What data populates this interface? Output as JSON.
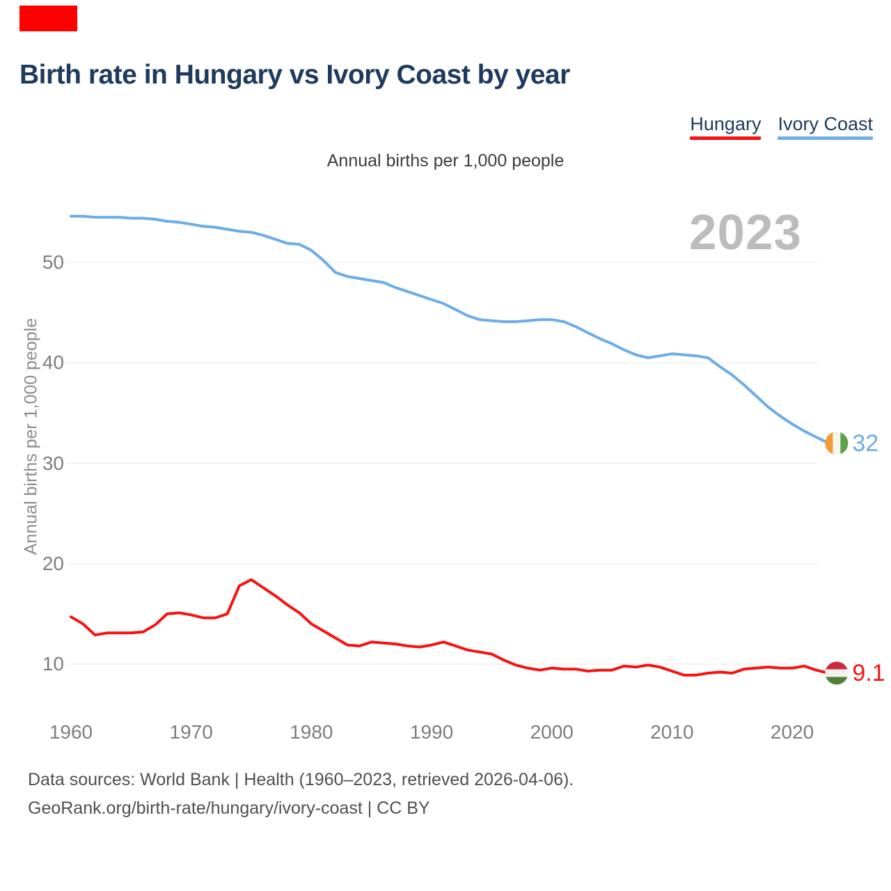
{
  "page": {
    "title": "Birth rate in Hungary vs Ivory Coast by year",
    "subtitle": "Annual births per 1,000 people",
    "watermark": "2023",
    "footer_line1": "Data sources: World Bank | Health (1960–2023, retrieved 2026-04-06).",
    "footer_line2": "GeoRank.org/birth-rate/hungary/ivory-coast | CC BY"
  },
  "legend": {
    "items": [
      {
        "label": "Hungary",
        "color": "#f51313"
      },
      {
        "label": "Ivory Coast",
        "color": "#72aee3"
      }
    ]
  },
  "chart_data": {
    "type": "line",
    "title": "Birth rate in Hungary vs Ivory Coast by year",
    "subtitle": "Annual births per 1,000 people",
    "ylabel": "Annual births per 1,000 people",
    "xlabel": "",
    "grid": "horizontal",
    "legend_position": "top-right",
    "xlim": [
      1960,
      2023
    ],
    "ylim": [
      6,
      57
    ],
    "y_ticks": [
      10,
      20,
      30,
      40,
      50
    ],
    "x_ticks": [
      1960,
      1970,
      1980,
      1990,
      2000,
      2010,
      2020
    ],
    "x": [
      1960,
      1961,
      1962,
      1963,
      1964,
      1965,
      1966,
      1967,
      1968,
      1969,
      1970,
      1971,
      1972,
      1973,
      1974,
      1975,
      1976,
      1977,
      1978,
      1979,
      1980,
      1981,
      1982,
      1983,
      1984,
      1985,
      1986,
      1987,
      1988,
      1989,
      1990,
      1991,
      1992,
      1993,
      1994,
      1995,
      1996,
      1997,
      1998,
      1999,
      2000,
      2001,
      2002,
      2003,
      2004,
      2005,
      2006,
      2007,
      2008,
      2009,
      2010,
      2011,
      2012,
      2013,
      2014,
      2015,
      2016,
      2017,
      2018,
      2019,
      2020,
      2021,
      2022,
      2023
    ],
    "series": [
      {
        "name": "Hungary",
        "color": "#f51313",
        "end_label": "9.1",
        "flag": {
          "orientation": "horizontal",
          "colors": [
            "#cd2a3e",
            "#f3f1ec",
            "#527f35"
          ]
        },
        "values": [
          14.7,
          14.0,
          12.9,
          13.1,
          13.1,
          13.1,
          13.2,
          13.9,
          15.0,
          15.1,
          14.9,
          14.6,
          14.6,
          15.0,
          17.8,
          18.4,
          17.6,
          16.8,
          15.9,
          15.1,
          14.0,
          13.3,
          12.6,
          11.9,
          11.8,
          12.2,
          12.1,
          12.0,
          11.8,
          11.7,
          11.9,
          12.2,
          11.8,
          11.4,
          11.2,
          11.0,
          10.4,
          9.9,
          9.6,
          9.4,
          9.6,
          9.5,
          9.5,
          9.3,
          9.4,
          9.4,
          9.8,
          9.7,
          9.9,
          9.7,
          9.3,
          8.9,
          8.9,
          9.1,
          9.2,
          9.1,
          9.5,
          9.6,
          9.7,
          9.6,
          9.6,
          9.8,
          9.4,
          9.1
        ]
      },
      {
        "name": "Ivory Coast",
        "color": "#6dace5",
        "end_label": "32",
        "flag": {
          "orientation": "vertical",
          "colors": [
            "#f29a33",
            "#f6f4ef",
            "#5fa048"
          ]
        },
        "values": [
          54.6,
          54.6,
          54.5,
          54.5,
          54.5,
          54.4,
          54.4,
          54.3,
          54.1,
          54.0,
          53.8,
          53.6,
          53.5,
          53.3,
          53.1,
          53.0,
          52.7,
          52.3,
          51.9,
          51.8,
          51.2,
          50.2,
          49.0,
          48.6,
          48.4,
          48.2,
          48.0,
          47.5,
          47.1,
          46.7,
          46.3,
          45.9,
          45.3,
          44.7,
          44.3,
          44.2,
          44.1,
          44.1,
          44.2,
          44.3,
          44.3,
          44.1,
          43.6,
          43.0,
          42.4,
          41.9,
          41.3,
          40.8,
          40.5,
          40.7,
          40.9,
          40.8,
          40.7,
          40.5,
          39.6,
          38.8,
          37.8,
          36.7,
          35.6,
          34.7,
          33.9,
          33.2,
          32.6,
          32.0
        ]
      }
    ]
  }
}
